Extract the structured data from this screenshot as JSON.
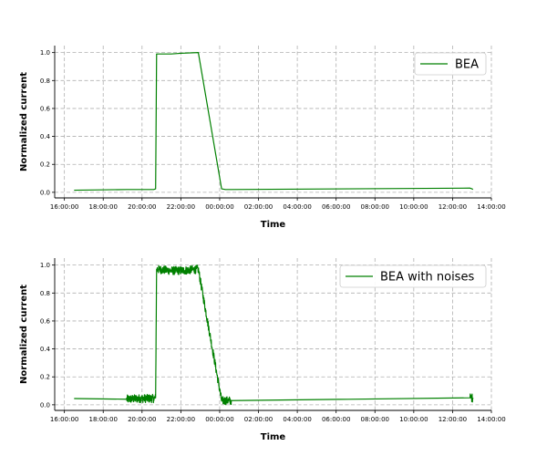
{
  "chart_data": [
    {
      "type": "line",
      "xlabel": "Time",
      "ylabel": "Normalized current",
      "x_ticks": [
        "16:00:00",
        "18:00:00",
        "20:00:00",
        "22:00:00",
        "00:00:00",
        "02:00:00",
        "04:00:00",
        "06:00:00",
        "08:00:00",
        "10:00:00",
        "12:00:00",
        "14:00:00"
      ],
      "y_ticks": [
        "0.0",
        "0.2",
        "0.4",
        "0.6",
        "0.8",
        "1.0"
      ],
      "xlim_hours": [
        15.5,
        38.0
      ],
      "ylim": [
        -0.04,
        1.05
      ],
      "grid": true,
      "legend_position": "top-right",
      "color": "#008000",
      "series": [
        {
          "name": "BEA",
          "x_hours": [
            16.5,
            19.2,
            19.9,
            20.6,
            20.7,
            20.75,
            21.5,
            22.0,
            22.9,
            24.1,
            24.3,
            24.6,
            36.9,
            37.0,
            37.05
          ],
          "y": [
            0.015,
            0.02,
            0.02,
            0.02,
            0.025,
            0.99,
            0.99,
            0.995,
            1.0,
            0.025,
            0.02,
            0.02,
            0.03,
            0.025,
            0.02
          ],
          "noise": 0.0
        }
      ]
    },
    {
      "type": "line",
      "xlabel": "Time",
      "ylabel": "Normalized current",
      "x_ticks": [
        "16:00:00",
        "18:00:00",
        "20:00:00",
        "22:00:00",
        "00:00:00",
        "02:00:00",
        "04:00:00",
        "06:00:00",
        "08:00:00",
        "10:00:00",
        "12:00:00",
        "14:00:00"
      ],
      "y_ticks": [
        "0.0",
        "0.2",
        "0.4",
        "0.6",
        "0.8",
        "1.0"
      ],
      "xlim_hours": [
        15.5,
        38.0
      ],
      "ylim": [
        -0.04,
        1.05
      ],
      "grid": true,
      "legend_position": "top-right",
      "color": "#008000",
      "series": [
        {
          "name": "BEA with noises",
          "x_hours": [
            16.5,
            19.2,
            19.9,
            20.6,
            20.7,
            20.75,
            21.5,
            22.0,
            22.9,
            24.1,
            24.3,
            24.6,
            36.9,
            37.0,
            37.05
          ],
          "y": [
            0.045,
            0.04,
            0.045,
            0.045,
            0.05,
            0.97,
            0.96,
            0.96,
            0.97,
            0.03,
            0.03,
            0.03,
            0.05,
            0.05,
            0.05
          ],
          "noise": 0.03
        }
      ]
    }
  ]
}
